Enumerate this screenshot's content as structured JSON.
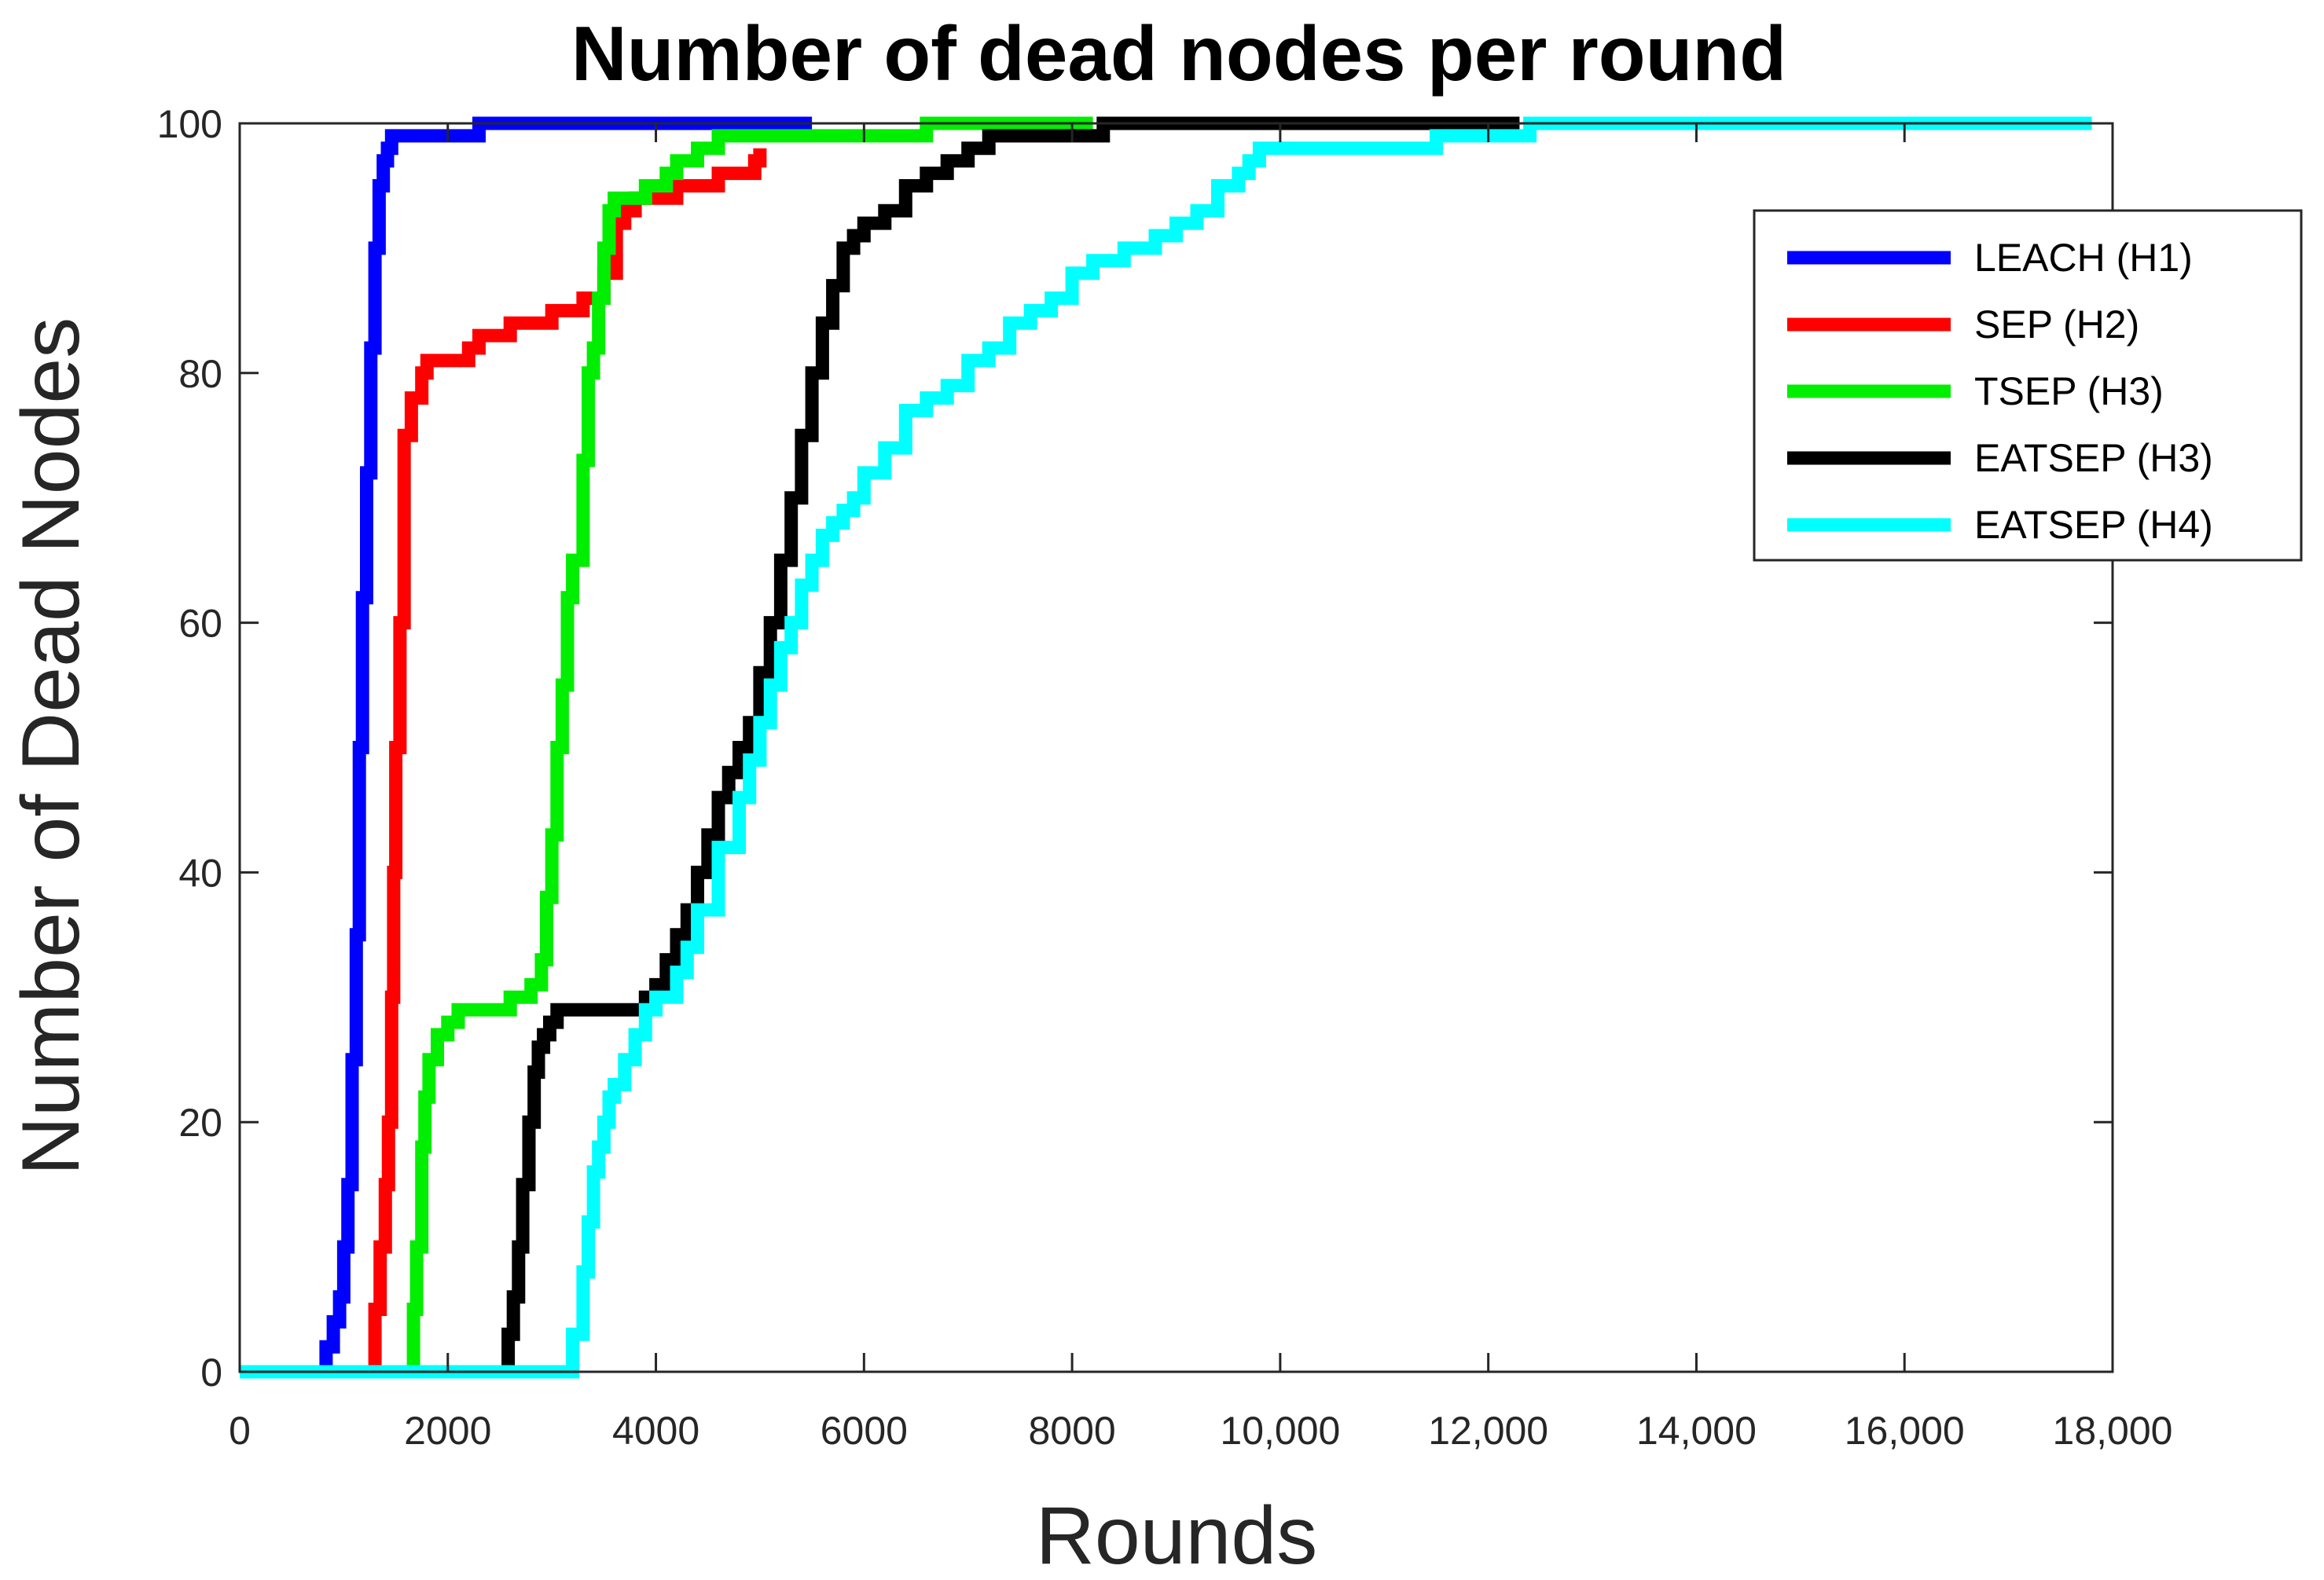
{
  "chart_data": {
    "type": "line",
    "title": "Number of dead nodes per round",
    "xlabel": "Rounds",
    "ylabel": "Number of Dead Nodes",
    "xlim": [
      0,
      18000
    ],
    "ylim": [
      0,
      100
    ],
    "xticks": [
      0,
      2000,
      4000,
      6000,
      8000,
      10000,
      12000,
      14000,
      16000,
      18000
    ],
    "xtick_labels": [
      "0",
      "2000",
      "4000",
      "6000",
      "8000",
      "10,000",
      "12,000",
      "14,000",
      "16,000",
      "18,000"
    ],
    "yticks": [
      0,
      20,
      40,
      60,
      80,
      100
    ],
    "ytick_labels": [
      "0",
      "20",
      "40",
      "60",
      "80",
      "100"
    ],
    "grid": false,
    "legend_position": "top-right",
    "series": [
      {
        "name": "LEACH (H1)",
        "color": "#0000ff",
        "x": [
          0,
          780,
          830,
          900,
          960,
          1000,
          1040,
          1080,
          1120,
          1150,
          1180,
          1220,
          1260,
          1300,
          1340,
          1380,
          1420,
          1460,
          1520,
          1620,
          2250,
          2300,
          5500
        ],
        "y": [
          0,
          0,
          2,
          4,
          6,
          10,
          15,
          25,
          35,
          50,
          62,
          72,
          82,
          90,
          95,
          97,
          98,
          99,
          99,
          99,
          99,
          100,
          100
        ]
      },
      {
        "name": "SEP (H2)",
        "color": "#ff0000",
        "x": [
          1220,
          1250,
          1300,
          1350,
          1400,
          1430,
          1460,
          1480,
          1500,
          1540,
          1580,
          1650,
          1750,
          1800,
          2100,
          2200,
          2300,
          2450,
          2600,
          2800,
          3000,
          3200,
          3300,
          3420,
          3500,
          3620,
          3700,
          3800,
          4000,
          4200,
          4400,
          4600,
          4800,
          4950,
          5000
        ],
        "y": [
          0,
          0,
          5,
          10,
          15,
          20,
          30,
          40,
          50,
          60,
          75,
          78,
          80,
          81,
          81,
          82,
          83,
          83,
          84,
          84,
          85,
          85,
          86,
          86,
          88,
          92,
          93,
          94,
          94,
          95,
          95,
          96,
          96,
          97,
          98
        ]
      },
      {
        "name": "TSEP (H3)",
        "color": "#00ee00",
        "x": [
          1530,
          1620,
          1670,
          1700,
          1750,
          1780,
          1820,
          1900,
          2000,
          2100,
          2300,
          2500,
          2600,
          2800,
          2900,
          2950,
          3000,
          3050,
          3100,
          3150,
          3200,
          3300,
          3350,
          3400,
          3450,
          3500,
          3550,
          3600,
          3650,
          3700,
          3800,
          3900,
          4000,
          4100,
          4200,
          4300,
          4400,
          4500,
          4550,
          4600,
          5000,
          5500,
          6000,
          6500,
          6600,
          8200
        ],
        "y": [
          0,
          0,
          5,
          10,
          18,
          22,
          25,
          27,
          28,
          29,
          29,
          29,
          30,
          31,
          33,
          38,
          43,
          50,
          55,
          62,
          65,
          73,
          80,
          82,
          86,
          90,
          93,
          94,
          94,
          94,
          94,
          95,
          95,
          96,
          97,
          97,
          98,
          98,
          98,
          99,
          99,
          99,
          99,
          99,
          100,
          100
        ]
      },
      {
        "name": "EATSEP (H3)",
        "color": "#000000",
        "x": [
          2450,
          2520,
          2580,
          2630,
          2680,
          2720,
          2780,
          2830,
          2870,
          2920,
          2980,
          3050,
          3120,
          3200,
          3300,
          3500,
          3700,
          3900,
          4000,
          4100,
          4200,
          4300,
          4400,
          4500,
          4600,
          4700,
          4800,
          4900,
          5000,
          5100,
          5200,
          5300,
          5400,
          5500,
          5600,
          5700,
          5800,
          5900,
          6000,
          6200,
          6400,
          6600,
          6800,
          7000,
          7200,
          7400,
          7800,
          8200,
          8300,
          9000,
          12300
        ],
        "y": [
          0,
          0,
          3,
          6,
          10,
          15,
          20,
          24,
          26,
          27,
          28,
          29,
          29,
          29,
          29,
          29,
          29,
          30,
          31,
          33,
          35,
          37,
          40,
          43,
          46,
          48,
          50,
          52,
          56,
          60,
          65,
          70,
          75,
          80,
          84,
          87,
          90,
          91,
          92,
          93,
          95,
          96,
          97,
          98,
          99,
          99,
          99,
          99,
          100,
          100,
          100
        ]
      },
      {
        "name": "EATSEP (H4)",
        "color": "#00ffff",
        "x": [
          0,
          3150,
          3200,
          3300,
          3350,
          3400,
          3450,
          3500,
          3550,
          3600,
          3700,
          3800,
          3900,
          4000,
          4200,
          4300,
          4400,
          4600,
          4800,
          4900,
          5000,
          5100,
          5200,
          5300,
          5400,
          5500,
          5600,
          5700,
          5800,
          5900,
          6000,
          6200,
          6400,
          6600,
          6800,
          7000,
          7200,
          7400,
          7600,
          7800,
          8000,
          8200,
          8500,
          8800,
          9000,
          9200,
          9400,
          9600,
          9700,
          9800,
          10500,
          11300,
          11500,
          12300,
          12400,
          17800
        ],
        "y": [
          0,
          0,
          3,
          8,
          12,
          16,
          18,
          20,
          22,
          23,
          25,
          27,
          29,
          30,
          32,
          34,
          37,
          42,
          46,
          49,
          52,
          55,
          58,
          60,
          63,
          65,
          67,
          68,
          69,
          70,
          72,
          74,
          77,
          78,
          79,
          81,
          82,
          84,
          85,
          86,
          88,
          89,
          90,
          91,
          92,
          93,
          95,
          96,
          97,
          98,
          98,
          98,
          99,
          99,
          100,
          100
        ]
      }
    ]
  }
}
